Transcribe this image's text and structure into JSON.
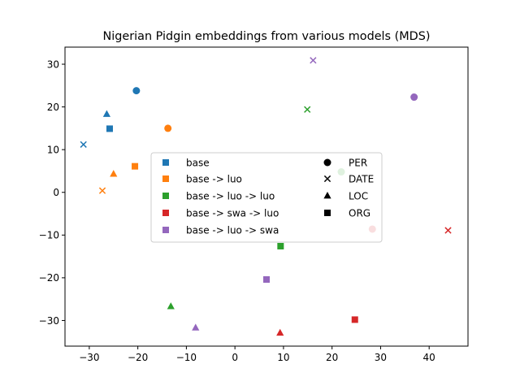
{
  "chart_data": {
    "type": "scatter",
    "title": "Nigerian Pidgin embeddings from various models (MDS)",
    "xlabel": "",
    "ylabel": "",
    "xlim": [
      -35,
      48
    ],
    "ylim": [
      -36,
      34
    ],
    "xticks": [
      -30,
      -20,
      -10,
      0,
      10,
      20,
      30,
      40
    ],
    "yticks": [
      -30,
      -20,
      -10,
      0,
      10,
      20,
      30
    ],
    "xtick_labels": [
      "−30",
      "−20",
      "−10",
      "0",
      "10",
      "20",
      "30",
      "40"
    ],
    "ytick_labels": [
      "−30",
      "−20",
      "−10",
      "0",
      "10",
      "20",
      "30"
    ],
    "grid": false,
    "legend_placement": "center",
    "series": [
      {
        "name": "base",
        "color": "#1f77b4",
        "points": [
          {
            "x": -20.3,
            "y": 23.8,
            "marker": "circle"
          },
          {
            "x": -31.2,
            "y": 11.2,
            "marker": "x"
          },
          {
            "x": -26.4,
            "y": 18.3,
            "marker": "triangle"
          },
          {
            "x": -25.8,
            "y": 14.9,
            "marker": "square"
          }
        ]
      },
      {
        "name": "base -> luo",
        "color": "#ff7f0e",
        "points": [
          {
            "x": -13.8,
            "y": 15.0,
            "marker": "circle"
          },
          {
            "x": -27.3,
            "y": 0.4,
            "marker": "x"
          },
          {
            "x": -25.0,
            "y": 4.3,
            "marker": "triangle"
          },
          {
            "x": -20.6,
            "y": 6.1,
            "marker": "square"
          }
        ]
      },
      {
        "name": "base -> luo -> luo",
        "color": "#2ca02c",
        "points": [
          {
            "x": 21.9,
            "y": 4.8,
            "marker": "circle"
          },
          {
            "x": 14.9,
            "y": 19.4,
            "marker": "x"
          },
          {
            "x": -13.2,
            "y": -26.7,
            "marker": "triangle"
          },
          {
            "x": 9.4,
            "y": -12.6,
            "marker": "square"
          }
        ]
      },
      {
        "name": "base -> swa -> luo",
        "color": "#d62728",
        "points": [
          {
            "x": 28.3,
            "y": -8.6,
            "marker": "circle"
          },
          {
            "x": 43.9,
            "y": -8.9,
            "marker": "x"
          },
          {
            "x": 9.3,
            "y": -32.9,
            "marker": "triangle"
          },
          {
            "x": 24.7,
            "y": -29.8,
            "marker": "square"
          }
        ]
      },
      {
        "name": "base -> luo -> swa",
        "color": "#9467bd",
        "points": [
          {
            "x": 36.9,
            "y": 22.3,
            "marker": "circle"
          },
          {
            "x": 16.1,
            "y": 30.9,
            "marker": "x"
          },
          {
            "x": -8.1,
            "y": -31.7,
            "marker": "triangle"
          },
          {
            "x": 6.5,
            "y": -20.4,
            "marker": "square"
          }
        ]
      }
    ],
    "marker_legend": [
      {
        "label": "PER",
        "marker": "circle"
      },
      {
        "label": "DATE",
        "marker": "x"
      },
      {
        "label": "LOC",
        "marker": "triangle"
      },
      {
        "label": "ORG",
        "marker": "square"
      }
    ]
  }
}
